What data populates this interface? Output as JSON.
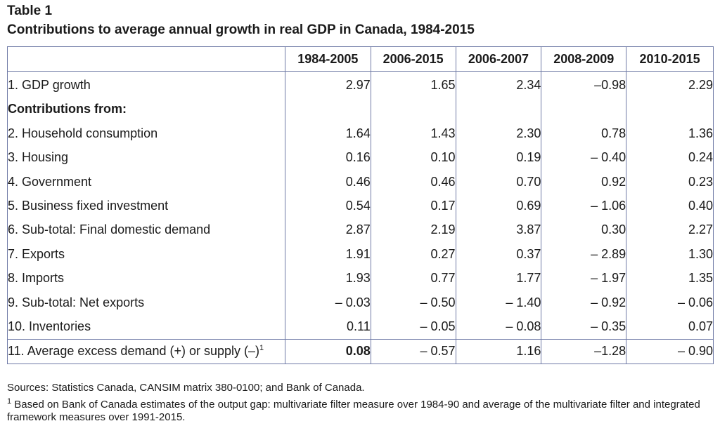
{
  "table_label": "Table 1",
  "table_title": "Contributions to average annual growth in real GDP in Canada, 1984-2015",
  "columns": [
    "1984-2005",
    "2006-2015",
    "2006-2007",
    "2008-2009",
    "2010-2015"
  ],
  "rows": [
    {
      "label": "1. GDP growth",
      "values": [
        "2.97",
        "1.65",
        "2.34",
        "–0.98",
        "2.29"
      ]
    },
    {
      "label": "Contributions from:",
      "values": [
        "",
        "",
        "",
        "",
        ""
      ]
    },
    {
      "label": "2. Household consumption",
      "values": [
        "1.64",
        "1.43",
        "2.30",
        "0.78",
        "1.36"
      ]
    },
    {
      "label": "3. Housing",
      "values": [
        "0.16",
        "0.10",
        "0.19",
        "– 0.40",
        "0.24"
      ]
    },
    {
      "label": "4. Government",
      "values": [
        "0.46",
        "0.46",
        "0.70",
        "0.92",
        "0.23"
      ]
    },
    {
      "label": "5. Business fixed investment",
      "values": [
        "0.54",
        "0.17",
        "0.69",
        "– 1.06",
        "0.40"
      ]
    },
    {
      "label": "6. Sub-total: Final domestic demand",
      "values": [
        "2.87",
        "2.19",
        "3.87",
        "0.30",
        "2.27"
      ]
    },
    {
      "label": "7. Exports",
      "values": [
        "1.91",
        "0.27",
        "0.37",
        "– 2.89",
        "1.30"
      ]
    },
    {
      "label": "8. Imports",
      "values": [
        "1.93",
        "0.77",
        "1.77",
        "– 1.97",
        "1.35"
      ]
    },
    {
      "label": "9. Sub-total: Net exports",
      "values": [
        "– 0.03",
        "– 0.50",
        "– 1.40",
        "– 0.92",
        "– 0.06"
      ]
    },
    {
      "label": "10. Inventories",
      "values": [
        "0.11",
        "– 0.05",
        "– 0.08",
        "– 0.35",
        "0.07"
      ]
    },
    {
      "label": "11. Average excess demand (+) or supply (–)",
      "label_sup": "1",
      "values": [
        "0.08",
        "– 0.57",
        "1.16",
        "–1.28",
        "– 0.90"
      ]
    }
  ],
  "notes": {
    "sources": "Sources: Statistics Canada, CANSIM matrix 380-0100; and Bank of Canada.",
    "footnote_mark": "1",
    "footnote_text": " Based on Bank of Canada estimates of the output gap: multivariate filter measure over 1984-90 and average of the multivariate filter and integrated framework measures over 1991-2015."
  }
}
